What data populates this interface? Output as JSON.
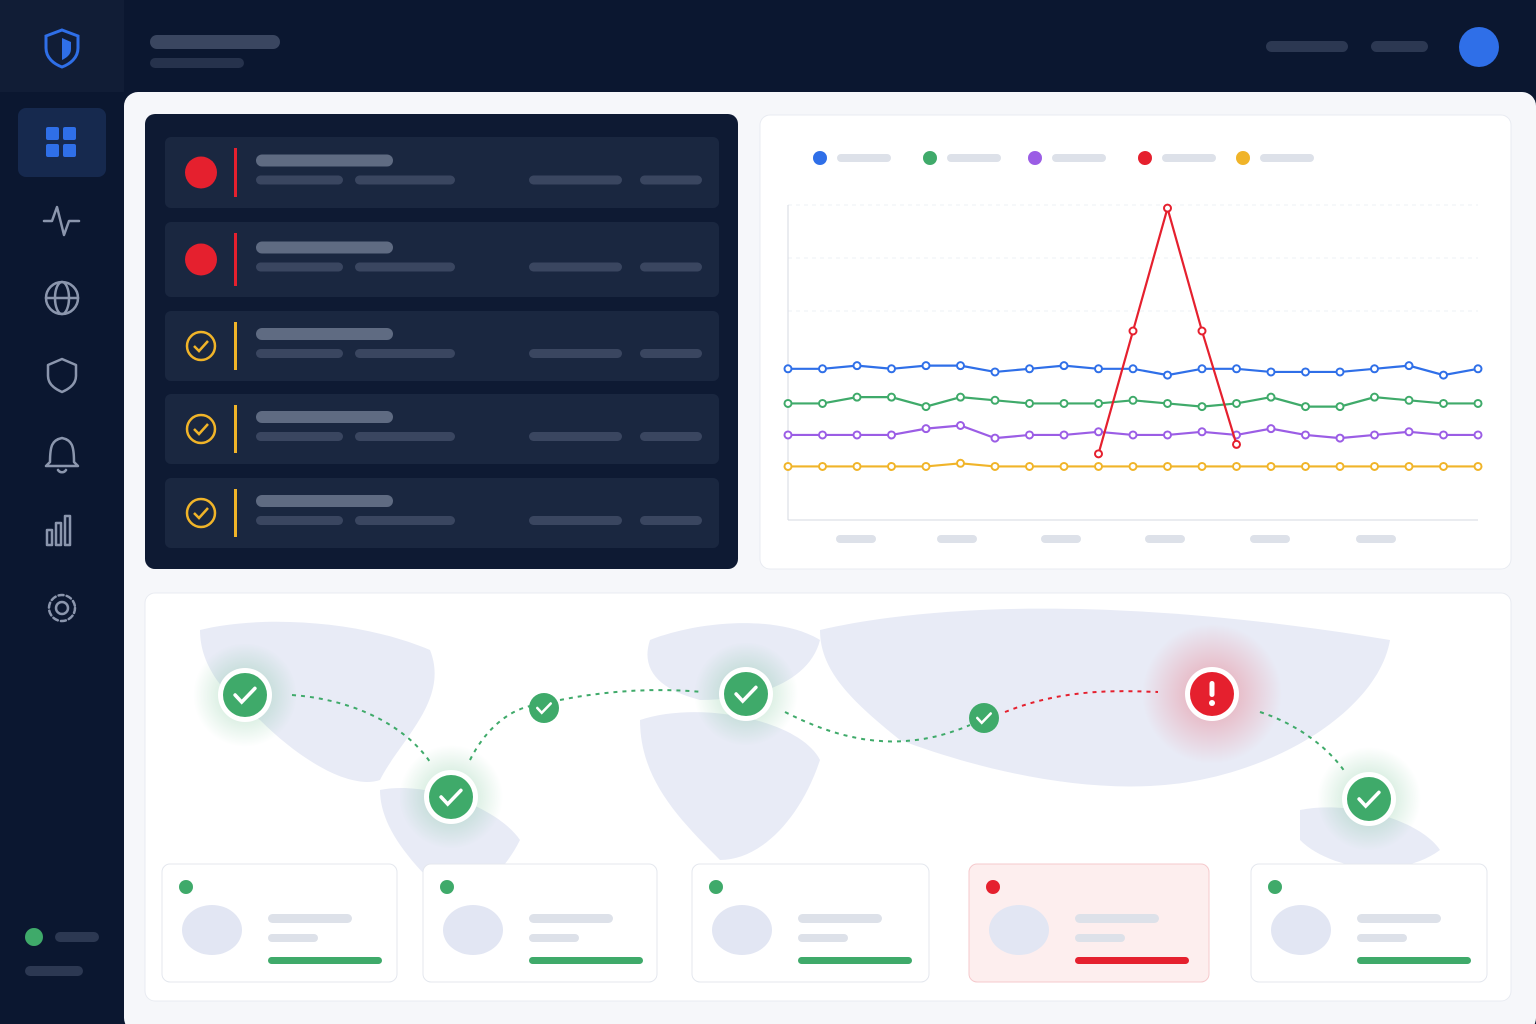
{
  "chart_data": {
    "type": "line",
    "ylim": [
      0,
      100
    ],
    "series": [
      {
        "color": "#2f6fe8",
        "values": [
          48,
          48,
          49,
          48,
          49,
          49,
          47,
          48,
          49,
          48,
          48,
          46,
          48,
          48,
          47,
          47,
          47,
          48,
          49,
          46,
          48
        ]
      },
      {
        "color": "#3faa6a",
        "values": [
          37,
          37,
          39,
          39,
          36,
          39,
          38,
          37,
          37,
          37,
          38,
          37,
          36,
          37,
          39,
          36,
          36,
          39,
          38,
          37,
          37
        ]
      },
      {
        "color": "#9b5de5",
        "values": [
          27,
          27,
          27,
          27,
          29,
          30,
          26,
          27,
          27,
          28,
          27,
          27,
          28,
          27,
          29,
          27,
          26,
          27,
          28,
          27,
          27
        ]
      },
      {
        "color": "#e5202e",
        "values": [
          null,
          null,
          null,
          null,
          null,
          null,
          null,
          null,
          null,
          21,
          60,
          99,
          60,
          24,
          null,
          null,
          null,
          null,
          null,
          null,
          null
        ]
      },
      {
        "color": "#f0b429",
        "values": [
          17,
          17,
          17,
          17,
          17,
          18,
          17,
          17,
          17,
          17,
          17,
          17,
          17,
          17,
          17,
          17,
          17,
          17,
          17,
          17,
          17
        ]
      }
    ]
  }
}
